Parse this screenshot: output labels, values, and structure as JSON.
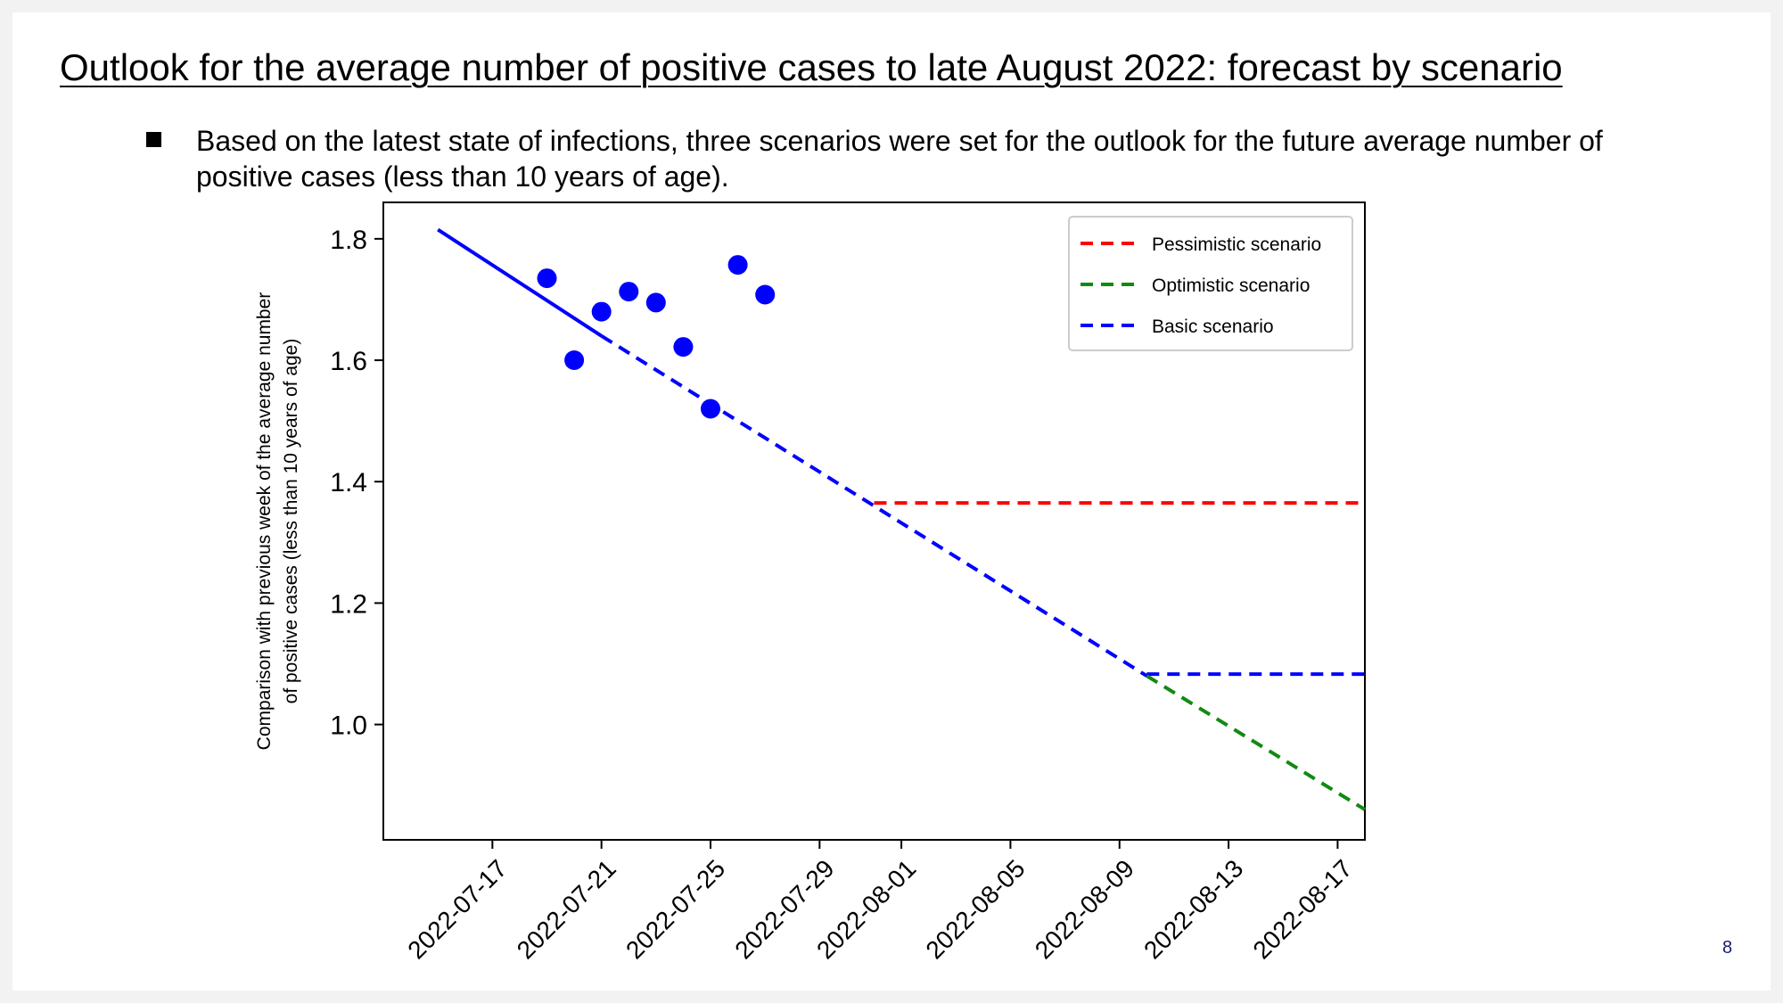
{
  "slide": {
    "title": "Outlook for the average number of positive cases to late August 2022: forecast by scenario",
    "bullet": "Based on the latest state of infections, three scenarios were set for the outlook for the future average number of positive cases (less than 10 years of age).",
    "page_number": "8"
  },
  "colors": {
    "pessimistic": "#ff0000",
    "optimistic": "#128a12",
    "basic": "#0000ff",
    "axis": "#000000"
  },
  "chart_data": {
    "type": "line",
    "title": "",
    "xlabel": "",
    "ylabel_lines": [
      "Comparison with previous week of the average number",
      "of positive cases (less than 10 years of age)"
    ],
    "x_is_date": true,
    "xlim": [
      "2022-07-13",
      "2022-08-18"
    ],
    "ylim": [
      0.81,
      1.86
    ],
    "x_ticks": [
      "2022-07-17",
      "2022-07-21",
      "2022-07-25",
      "2022-07-29",
      "2022-08-01",
      "2022-08-05",
      "2022-08-09",
      "2022-08-13",
      "2022-08-17"
    ],
    "y_ticks": [
      1.0,
      1.2,
      1.4,
      1.6,
      1.8
    ],
    "y_tick_labels": [
      "1.0",
      "1.2",
      "1.4",
      "1.6",
      "1.8"
    ],
    "legend": {
      "position": "top-right",
      "entries": [
        "Pessimistic scenario",
        "Optimistic scenario",
        "Basic scenario"
      ]
    },
    "observed_points": {
      "x": [
        "2022-07-19",
        "2022-07-20",
        "2022-07-21",
        "2022-07-22",
        "2022-07-23",
        "2022-07-24",
        "2022-07-25",
        "2022-07-26",
        "2022-07-27"
      ],
      "y": [
        1.735,
        1.6,
        1.68,
        1.713,
        1.695,
        1.622,
        1.52,
        1.757,
        1.708
      ]
    },
    "series": [
      {
        "name": "Basic scenario",
        "color_key": "basic",
        "style": "solid",
        "x": [
          "2022-07-15",
          "2022-07-21"
        ],
        "y": [
          1.815,
          1.64
        ]
      },
      {
        "name": "Basic scenario",
        "color_key": "basic",
        "style": "dashed",
        "x": [
          "2022-07-21",
          "2022-08-10"
        ],
        "y": [
          1.64,
          1.08
        ]
      },
      {
        "name": "Basic scenario",
        "color_key": "basic",
        "style": "dashed",
        "x": [
          "2022-08-10",
          "2022-08-18"
        ],
        "y": [
          1.083,
          1.083
        ]
      },
      {
        "name": "Pessimistic scenario",
        "color_key": "pessimistic",
        "style": "dashed",
        "x": [
          "2022-07-31",
          "2022-08-18"
        ],
        "y": [
          1.365,
          1.365
        ]
      },
      {
        "name": "Optimistic scenario",
        "color_key": "optimistic",
        "style": "dashed",
        "x": [
          "2022-08-10",
          "2022-08-18"
        ],
        "y": [
          1.08,
          0.86
        ]
      }
    ]
  }
}
